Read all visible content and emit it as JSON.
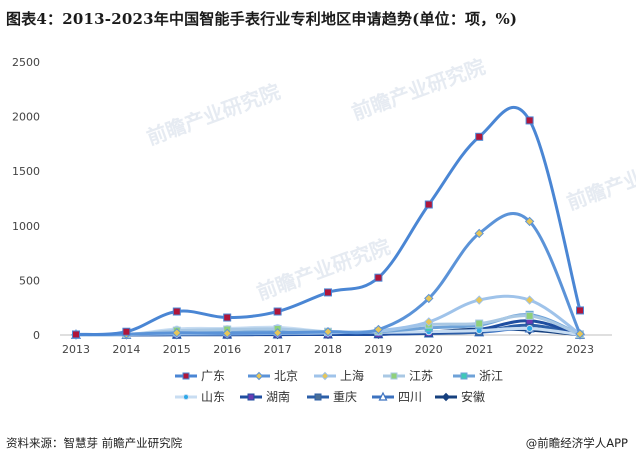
{
  "title": "图表4：2013-2023年中国智能手表行业专利地区申请趋势(单位：项，%)",
  "source": "资料来源：智慧芽 前瞻产业研究院",
  "credit": "@前瞻经济学人APP",
  "watermark": "前瞻产业研究院",
  "chart_data": {
    "type": "line",
    "x": [
      "2013",
      "2014",
      "2015",
      "2016",
      "2017",
      "2018",
      "2019",
      "2020",
      "2021",
      "2022",
      "2023"
    ],
    "ylim": [
      0,
      2500
    ],
    "yticks": [
      0,
      500,
      1000,
      1500,
      2000,
      2500
    ],
    "grid": false,
    "legend_position": "bottom",
    "series": [
      {
        "name": "广东",
        "values": [
          5,
          30,
          215,
          160,
          215,
          390,
          525,
          1195,
          1815,
          1965,
          225
        ],
        "color": "#4a86d4",
        "marker": "square",
        "marker_color": "#b0163a"
      },
      {
        "name": "北京",
        "values": [
          3,
          8,
          20,
          15,
          20,
          30,
          50,
          335,
          930,
          1040,
          10
        ],
        "color": "#5b93d8",
        "marker": "diamond",
        "marker_color": "#e6c65a"
      },
      {
        "name": "上海",
        "values": [
          2,
          5,
          10,
          10,
          15,
          20,
          40,
          120,
          320,
          320,
          8
        ],
        "color": "#9fc3ea",
        "marker": "diamond",
        "marker_color": "#e6c65a"
      },
      {
        "name": "江苏",
        "values": [
          2,
          5,
          40,
          50,
          55,
          30,
          35,
          95,
          105,
          175,
          6
        ],
        "color": "#a9c8e4",
        "marker": "square",
        "marker_color": "#8fd07a"
      },
      {
        "name": "浙江",
        "values": [
          2,
          5,
          20,
          25,
          30,
          25,
          30,
          65,
          90,
          185,
          5
        ],
        "color": "#6ea2d8",
        "marker": "square",
        "marker_color": "#3fc9b6"
      },
      {
        "name": "山东",
        "values": [
          1,
          3,
          55,
          60,
          70,
          30,
          25,
          30,
          40,
          60,
          3
        ],
        "color": "#c8ddf2",
        "marker": "circle",
        "marker_color": "#2da8e8"
      },
      {
        "name": "湖南",
        "values": [
          1,
          2,
          5,
          5,
          5,
          5,
          8,
          20,
          50,
          130,
          3
        ],
        "color": "#1f4ea0",
        "marker": "square",
        "marker_color": "#6a3bb0"
      },
      {
        "name": "重庆",
        "values": [
          1,
          2,
          3,
          3,
          5,
          5,
          8,
          15,
          30,
          90,
          2
        ],
        "color": "#2c5fa8",
        "marker": "square",
        "marker_color": "#4b6f96"
      },
      {
        "name": "四川",
        "values": [
          1,
          2,
          3,
          4,
          5,
          6,
          8,
          15,
          25,
          60,
          2
        ],
        "color": "#3d73c0",
        "marker": "triangle",
        "marker_color": "#ffffff"
      },
      {
        "name": "安徽",
        "values": [
          1,
          2,
          3,
          3,
          4,
          5,
          6,
          25,
          55,
          45,
          2
        ],
        "color": "#16407e",
        "marker": "diamond",
        "marker_color": "#16407e"
      }
    ]
  }
}
